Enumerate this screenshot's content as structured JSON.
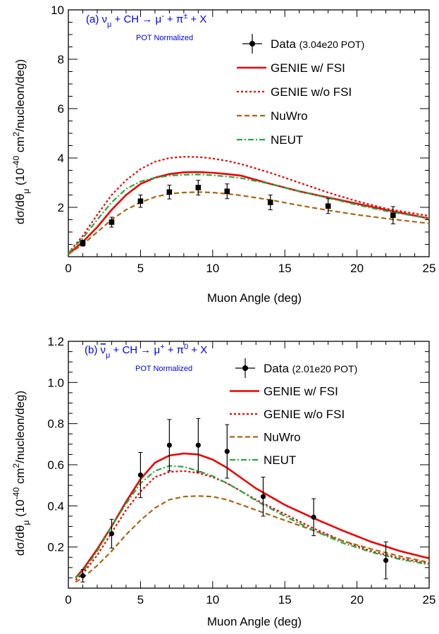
{
  "chart_data": [
    {
      "type": "line",
      "title": "(a)  ν_μ + CH → μ⁻ + π± + X",
      "title_main": "(a)  νμ + CH → μ",
      "title_parts": {
        "prefix": "(a)",
        "nu": "ν",
        "nu_sub": "μ",
        "mid": " + CH → μ",
        "mu_sup": "-",
        "pi": " + π",
        "pi_sup": "±",
        "end": " + X"
      },
      "subtitle": "POT Normalized",
      "xlabel": "Muon Angle (deg)",
      "ylabel_text": "dσ/dθ",
      "ylabel_sub": "μ",
      "ylabel_units": " (10",
      "ylabel_exp": "-40",
      "ylabel_tail": " cm",
      "ylabel_sq": "2",
      "ylabel_end": "/nucleon/deg)",
      "xlim": [
        0,
        25
      ],
      "ylim": [
        0,
        10
      ],
      "xticks": [
        0,
        5,
        10,
        15,
        20,
        25
      ],
      "xtick_labels": [
        "0",
        "5",
        "10",
        "15",
        "20",
        "25"
      ],
      "yticks": [
        2,
        4,
        6,
        8,
        10
      ],
      "ytick_labels": [
        "2",
        "4",
        "6",
        "8",
        "10"
      ],
      "legend_position": "top-right",
      "legend": {
        "data_label": "Data",
        "data_note": "(3.04e20 POT)",
        "entries": [
          "GENIE w/ FSI",
          "GENIE w/o FSI",
          "NuWro",
          "NEUT"
        ]
      },
      "data_points": {
        "name": "Data",
        "x": [
          1,
          3,
          5,
          7,
          9,
          11,
          14,
          18,
          22.5
        ],
        "y": [
          0.55,
          1.4,
          2.25,
          2.62,
          2.8,
          2.65,
          2.2,
          2.05,
          1.68
        ],
        "yerr": [
          0.12,
          0.2,
          0.25,
          0.28,
          0.3,
          0.3,
          0.3,
          0.3,
          0.35
        ]
      },
      "series": [
        {
          "name": "GENIE w/ FSI",
          "color": "#ee0000",
          "style": "solid",
          "x": [
            0,
            1,
            2,
            3,
            4,
            5,
            6,
            7,
            8,
            9,
            10,
            11,
            12,
            14,
            16,
            18,
            20,
            22,
            25
          ],
          "y": [
            0.1,
            0.6,
            1.2,
            1.9,
            2.5,
            2.95,
            3.2,
            3.35,
            3.42,
            3.43,
            3.4,
            3.35,
            3.28,
            2.95,
            2.65,
            2.4,
            2.15,
            1.9,
            1.55
          ]
        },
        {
          "name": "GENIE w/o FSI",
          "color": "#ee0000",
          "style": "dotted",
          "x": [
            0,
            1,
            2,
            3,
            4,
            5,
            6,
            7,
            8,
            9,
            10,
            11,
            12,
            14,
            16,
            18,
            20,
            22,
            25
          ],
          "y": [
            0.15,
            0.85,
            1.7,
            2.5,
            3.1,
            3.55,
            3.85,
            4.0,
            4.05,
            4.04,
            3.98,
            3.88,
            3.75,
            3.4,
            3.0,
            2.6,
            2.25,
            1.95,
            1.65
          ]
        },
        {
          "name": "NuWro",
          "color": "#aa6611",
          "style": "dashed",
          "x": [
            0,
            1,
            2,
            3,
            4,
            5,
            6,
            7,
            8,
            9,
            10,
            11,
            12,
            14,
            16,
            18,
            20,
            22,
            25
          ],
          "y": [
            0.1,
            0.5,
            1.0,
            1.5,
            1.9,
            2.2,
            2.42,
            2.55,
            2.6,
            2.62,
            2.6,
            2.55,
            2.48,
            2.3,
            2.08,
            1.88,
            1.7,
            1.55,
            1.35
          ]
        },
        {
          "name": "NEUT",
          "color": "#22aa44",
          "style": "dashdot",
          "x": [
            0,
            1,
            2,
            3,
            4,
            5,
            6,
            7,
            8,
            9,
            10,
            11,
            12,
            14,
            16,
            18,
            20,
            22,
            25
          ],
          "y": [
            0.15,
            0.75,
            1.5,
            2.2,
            2.75,
            3.05,
            3.2,
            3.28,
            3.32,
            3.33,
            3.3,
            3.25,
            3.18,
            2.95,
            2.65,
            2.38,
            2.1,
            1.85,
            1.55
          ]
        }
      ]
    },
    {
      "type": "line",
      "title": "(b)  ν̄_μ + CH → μ⁺ + π⁰ + X",
      "title_parts": {
        "prefix": "(b)",
        "nu": "ν",
        "nu_sub": "μ",
        "mid": " + CH → μ",
        "mu_sup": "+",
        "pi": " + π",
        "pi_sup": "0",
        "end": " + X"
      },
      "subtitle": "POT Normalized",
      "xlabel": "Muon Angle (deg)",
      "ylabel_text": "dσ/dθ",
      "ylabel_sub": "μ",
      "ylabel_units": " (10",
      "ylabel_exp": "-40",
      "ylabel_tail": " cm",
      "ylabel_sq": "2",
      "ylabel_end": "/nucleon/deg)",
      "xlim": [
        0,
        25
      ],
      "ylim": [
        0,
        1.2
      ],
      "xticks": [
        0,
        5,
        10,
        15,
        20,
        25
      ],
      "xtick_labels": [
        "0",
        "5",
        "10",
        "15",
        "20",
        "25"
      ],
      "yticks": [
        0.2,
        0.4,
        0.6,
        0.8,
        1.0,
        1.2
      ],
      "ytick_labels": [
        "0.2",
        "0.4",
        "0.6",
        "0.8",
        "1.0",
        "1.2"
      ],
      "legend_position": "top-right",
      "legend": {
        "data_label": "Data",
        "data_note": "(2.01e20 POT)",
        "entries": [
          "GENIE w/ FSI",
          "GENIE w/o FSI",
          "NuWro",
          "NEUT"
        ]
      },
      "data_points": {
        "name": "Data",
        "x": [
          1,
          3,
          5,
          7,
          9,
          11,
          13.5,
          17,
          22
        ],
        "y": [
          0.06,
          0.265,
          0.55,
          0.695,
          0.695,
          0.665,
          0.445,
          0.345,
          0.135
        ],
        "yerr": [
          0.03,
          0.07,
          0.11,
          0.125,
          0.13,
          0.13,
          0.095,
          0.09,
          0.09
        ]
      },
      "series": [
        {
          "name": "GENIE w/ FSI",
          "color": "#ee0000",
          "style": "solid",
          "x": [
            0.5,
            1,
            2,
            3,
            4,
            5,
            6,
            7,
            8,
            9,
            10,
            11,
            12,
            13,
            15,
            17,
            19,
            21,
            23,
            25
          ],
          "y": [
            0.05,
            0.09,
            0.19,
            0.3,
            0.42,
            0.53,
            0.61,
            0.645,
            0.655,
            0.65,
            0.625,
            0.585,
            0.535,
            0.485,
            0.405,
            0.34,
            0.28,
            0.225,
            0.18,
            0.145
          ]
        },
        {
          "name": "GENIE w/o FSI",
          "color": "#ee0000",
          "style": "dotted",
          "x": [
            0.5,
            1,
            2,
            3,
            4,
            5,
            6,
            7,
            8,
            9,
            10,
            11,
            12,
            13,
            15,
            17,
            19,
            21,
            23,
            25
          ],
          "y": [
            0.04,
            0.07,
            0.16,
            0.27,
            0.38,
            0.47,
            0.54,
            0.565,
            0.57,
            0.56,
            0.54,
            0.51,
            0.47,
            0.43,
            0.36,
            0.29,
            0.23,
            0.18,
            0.145,
            0.12
          ]
        },
        {
          "name": "NuWro",
          "color": "#aa6611",
          "style": "dashed",
          "x": [
            0.5,
            1,
            2,
            3,
            4,
            5,
            6,
            7,
            8,
            9,
            10,
            11,
            12,
            13,
            15,
            17,
            19,
            21,
            23,
            25
          ],
          "y": [
            0.03,
            0.05,
            0.11,
            0.18,
            0.26,
            0.33,
            0.39,
            0.43,
            0.445,
            0.448,
            0.445,
            0.43,
            0.405,
            0.38,
            0.33,
            0.28,
            0.23,
            0.19,
            0.155,
            0.125
          ]
        },
        {
          "name": "NEUT",
          "color": "#22aa44",
          "style": "dashdot",
          "x": [
            0.5,
            1,
            2,
            3,
            4,
            5,
            6,
            7,
            8,
            9,
            10,
            11,
            12,
            13,
            15,
            17,
            19,
            21,
            23,
            25
          ],
          "y": [
            0.05,
            0.08,
            0.18,
            0.3,
            0.41,
            0.51,
            0.57,
            0.595,
            0.59,
            0.57,
            0.545,
            0.51,
            0.47,
            0.425,
            0.35,
            0.28,
            0.22,
            0.175,
            0.14,
            0.115
          ]
        }
      ]
    }
  ]
}
